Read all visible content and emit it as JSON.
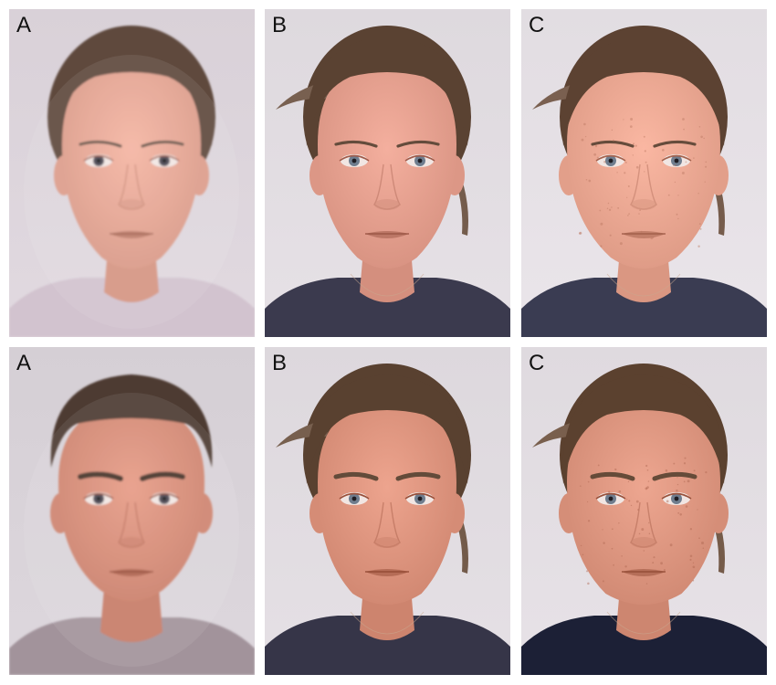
{
  "figure": {
    "panels": [
      {
        "label": "A",
        "row": 0,
        "col": 0,
        "variant": "average-female",
        "skin": "#e7a795",
        "hair": "#5e4a3e",
        "shirt": "#cdbcc9",
        "bg": "#ddd5dc"
      },
      {
        "label": "B",
        "row": 0,
        "col": 1,
        "variant": "female-ponytail",
        "skin": "#e6a190",
        "hair": "#5a4232",
        "shirt": "#3b3a4e",
        "bg": "#e2dde2"
      },
      {
        "label": "C",
        "row": 0,
        "col": 2,
        "variant": "female-freckled",
        "skin": "#eca994",
        "hair": "#5c4232",
        "shirt": "#3a3c52",
        "bg": "#e6e1e6"
      },
      {
        "label": "A",
        "row": 1,
        "col": 0,
        "variant": "average-male",
        "skin": "#d98e79",
        "hair": "#4d3b31",
        "shirt": "#8f7c85",
        "bg": "#d9d3d9"
      },
      {
        "label": "B",
        "row": 1,
        "col": 1,
        "variant": "female-ponytail-masculinized",
        "skin": "#df9680",
        "hair": "#594130",
        "shirt": "#363548",
        "bg": "#e1dce1"
      },
      {
        "label": "C",
        "row": 1,
        "col": 2,
        "variant": "female-freckled-masculinized",
        "skin": "#df9882",
        "hair": "#5b412f",
        "shirt": "#1c2036",
        "bg": "#e3dee3"
      }
    ]
  }
}
